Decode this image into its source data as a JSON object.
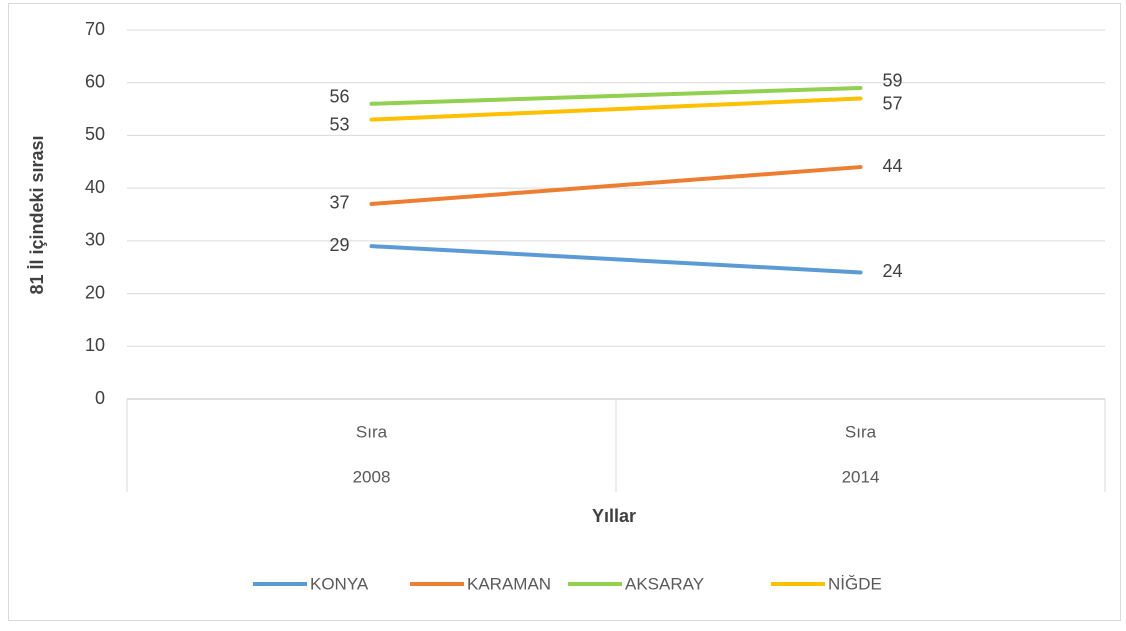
{
  "chart_data": {
    "type": "line",
    "y_axis_label": "81 İl içindeki sırası",
    "x_axis_label": "Yıllar",
    "categories": [
      "Sıra",
      "Sıra"
    ],
    "category_groups": [
      "2008",
      "2014"
    ],
    "series": [
      {
        "name": "KONYA",
        "color": "#5b9bd5",
        "values": [
          29,
          24
        ]
      },
      {
        "name": "KARAMAN",
        "color": "#ed7d31",
        "values": [
          37,
          44
        ]
      },
      {
        "name": "AKSARAY",
        "color": "#92d050",
        "values": [
          56,
          59
        ]
      },
      {
        "name": "NİĞDE",
        "color": "#ffc000",
        "values": [
          53,
          57
        ]
      }
    ],
    "ylim": [
      0,
      70
    ],
    "yticks": [
      0,
      10,
      20,
      30,
      40,
      50,
      60,
      70
    ],
    "grid": true,
    "legend": "bottom"
  }
}
